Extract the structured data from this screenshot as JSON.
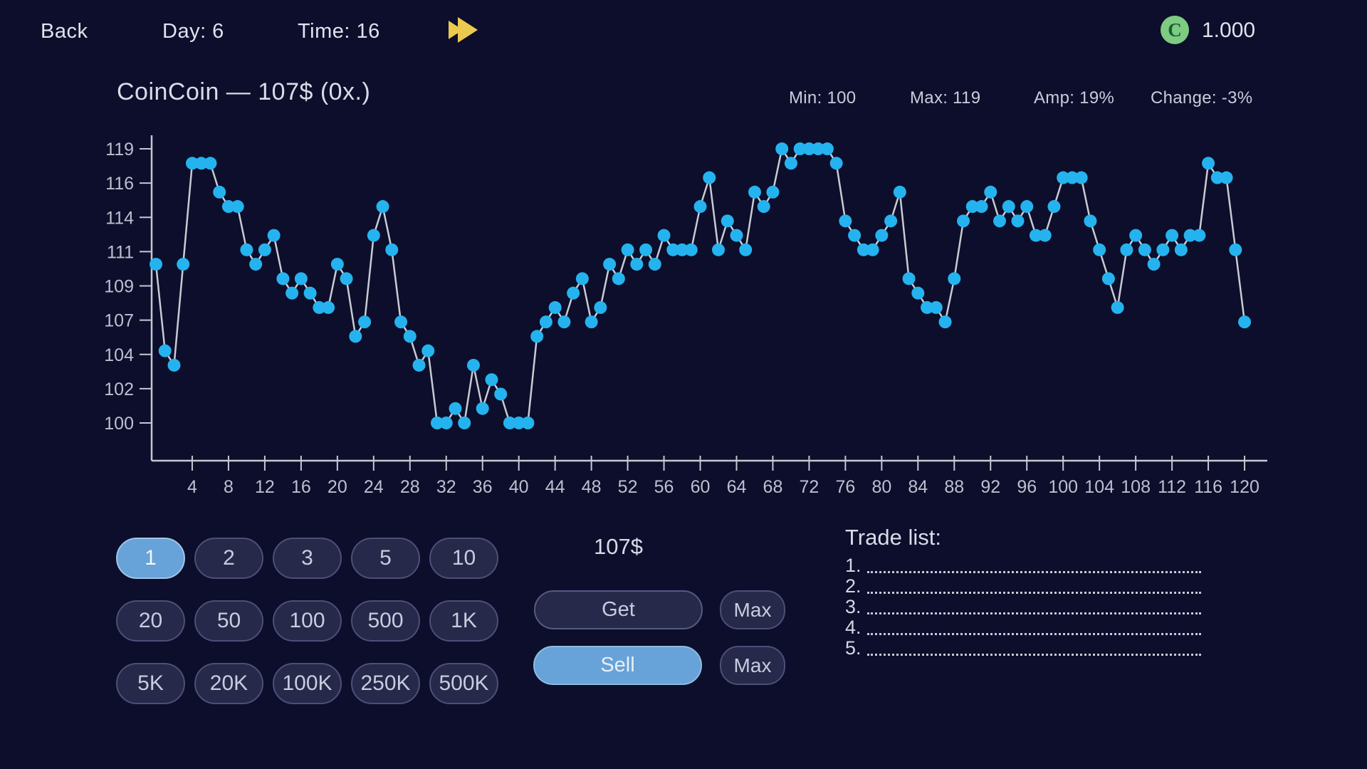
{
  "top_bar": {
    "back_label": "Back",
    "day_label": "Day: 6",
    "time_label": "Time: 16",
    "balance": "1.000",
    "coin_letter": "C",
    "accent_yellow": "#ecc94f",
    "coin_green": "#7ecb82"
  },
  "chart": {
    "title": "CoinCoin — 107$ (0x.)",
    "stats": [
      "Min: 100",
      "Max: 119",
      "Amp: 19%",
      "Change: -3%"
    ],
    "chart_data": {
      "type": "line",
      "title": "CoinCoin — 107$ (0x.)",
      "x_start": 0,
      "values": [
        111,
        105,
        104,
        111,
        118,
        118,
        118,
        116,
        115,
        115,
        112,
        111,
        112,
        113,
        110,
        109,
        110,
        109,
        108,
        108,
        111,
        110,
        106,
        107,
        113,
        115,
        112,
        107,
        106,
        104,
        105,
        100,
        100,
        101,
        100,
        104,
        101,
        103,
        102,
        100,
        100,
        100,
        106,
        107,
        108,
        107,
        109,
        110,
        107,
        108,
        111,
        110,
        112,
        111,
        112,
        111,
        113,
        112,
        112,
        112,
        115,
        117,
        112,
        114,
        113,
        112,
        116,
        115,
        116,
        119,
        118,
        119,
        119,
        119,
        119,
        118,
        114,
        113,
        112,
        112,
        113,
        114,
        116,
        110,
        109,
        108,
        108,
        107,
        110,
        114,
        115,
        115,
        116,
        114,
        115,
        114,
        115,
        113,
        113,
        115,
        117,
        117,
        117,
        114,
        112,
        110,
        108,
        112,
        113,
        112,
        111,
        112,
        113,
        112,
        113,
        113,
        118,
        117,
        117,
        112,
        107
      ],
      "x_tick_labels": [
        4,
        8,
        12,
        16,
        20,
        24,
        28,
        32,
        36,
        40,
        44,
        48,
        52,
        56,
        60,
        64,
        68,
        72,
        76,
        80,
        84,
        88,
        92,
        96,
        100,
        104,
        108,
        112,
        116,
        120
      ],
      "y_tick_labels": [
        119,
        116,
        114,
        111,
        109,
        107,
        104,
        102,
        100
      ],
      "ylim": [
        100,
        119
      ],
      "xlim": [
        0,
        120
      ],
      "grid": false,
      "legend": "none",
      "stats": {
        "min": 100,
        "max": 119,
        "amplitude_pct": 19,
        "change_pct": -3
      },
      "marker_color": "#25b3ef",
      "line_color": "#c9cbd3"
    }
  },
  "controls": {
    "amount_rows": [
      [
        "1",
        "2",
        "3",
        "5",
        "10"
      ],
      [
        "20",
        "50",
        "100",
        "500",
        "1K"
      ],
      [
        "5K",
        "20K",
        "100K",
        "250K",
        "500K"
      ]
    ],
    "selected_amount": "1",
    "price_label": "107$",
    "get_label": "Get",
    "sell_label": "Sell",
    "max_label": "Max"
  },
  "trade_list": {
    "title": "Trade list:",
    "items": [
      "1.",
      "2.",
      "3.",
      "4.",
      "5."
    ]
  }
}
